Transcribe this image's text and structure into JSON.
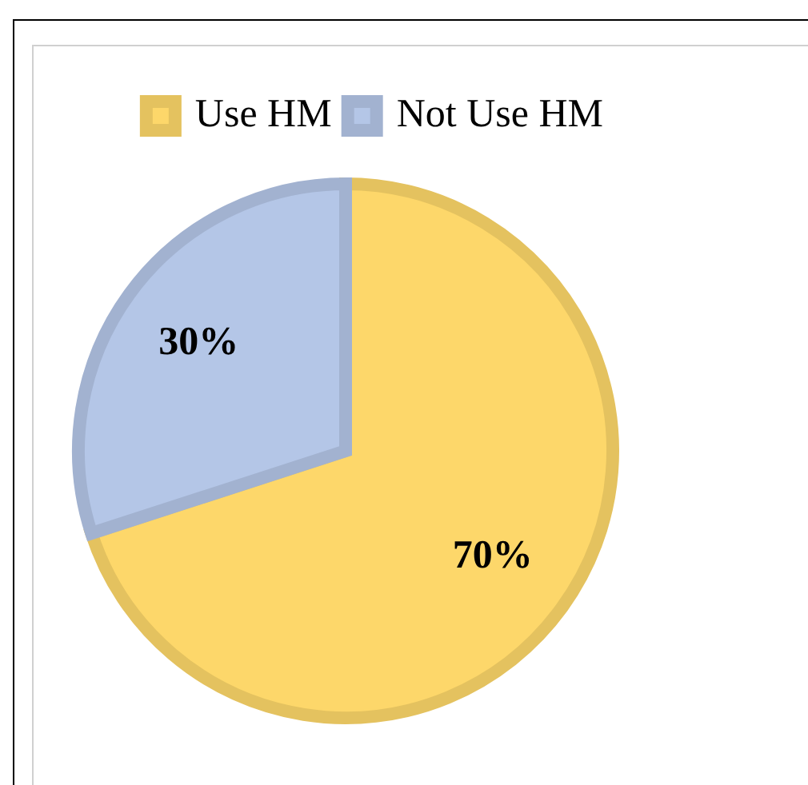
{
  "chart_data": {
    "type": "pie",
    "categories": [
      "Use HM",
      "Not Use HM"
    ],
    "values": [
      70,
      30
    ],
    "colors": [
      "#fdd76a",
      "#b4c6e7"
    ],
    "value_labels": [
      "70%",
      "30%"
    ],
    "legend": "top"
  }
}
